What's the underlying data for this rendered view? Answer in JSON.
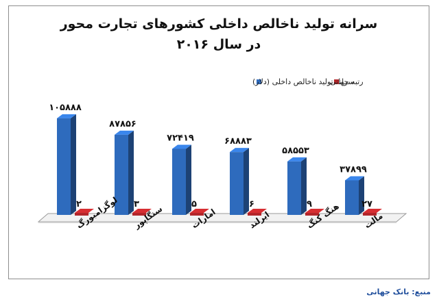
{
  "chart_data": {
    "type": "bar",
    "title_line1": "سرانه تولید ناخالص داخلی کشورهای تجارت محور",
    "title_line2": "در سال ۲۰۱۶",
    "categories": [
      "لوگزامبورگ",
      "سنگاپور",
      "امارات",
      "ایرلند",
      "هنگ کنگ",
      "مالت"
    ],
    "series": [
      {
        "name": "سرانه تولید ناخالص داخلی (دلار)",
        "values": [
          105888,
          87856,
          72419,
          68883,
          58553,
          37899
        ],
        "labels": [
          "۱۰۵۸۸۸",
          "۸۷۸۵۶",
          "۷۲۴۱۹",
          "۶۸۸۸۳",
          "۵۸۵۵۳",
          "۳۷۸۹۹"
        ],
        "color": "#2e6bbd"
      },
      {
        "name": "رتبه جهانی",
        "values": [
          2,
          3,
          5,
          6,
          9,
          27
        ],
        "labels": [
          "۲",
          "۳",
          "۵",
          "۶",
          "۹",
          "۲۷"
        ],
        "color": "#b3262a"
      }
    ],
    "legend_position": "top-center",
    "grid": false
  },
  "source_text": "منبع: بانک جهانی"
}
